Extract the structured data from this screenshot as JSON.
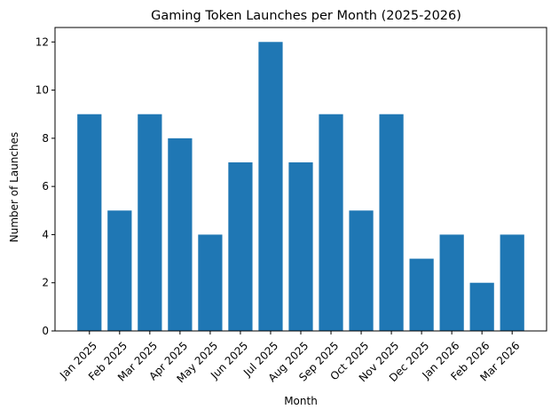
{
  "chart_data": {
    "type": "bar",
    "title": "Gaming Token Launches per Month (2025-2026)",
    "xlabel": "Month",
    "ylabel": "Number of Launches",
    "categories": [
      "Jan 2025",
      "Feb 2025",
      "Mar 2025",
      "Apr 2025",
      "May 2025",
      "Jun 2025",
      "Jul 2025",
      "Aug 2025",
      "Sep 2025",
      "Oct 2025",
      "Nov 2025",
      "Dec 2025",
      "Jan 2026",
      "Feb 2026",
      "Mar 2026"
    ],
    "values": [
      9,
      5,
      9,
      8,
      4,
      7,
      12,
      7,
      9,
      5,
      9,
      3,
      4,
      2,
      4
    ],
    "ylim": [
      0,
      12.6
    ],
    "yticks": [
      0,
      2,
      4,
      6,
      8,
      10,
      12
    ],
    "bar_color": "#1f77b4",
    "grid": false,
    "legend": "none"
  }
}
